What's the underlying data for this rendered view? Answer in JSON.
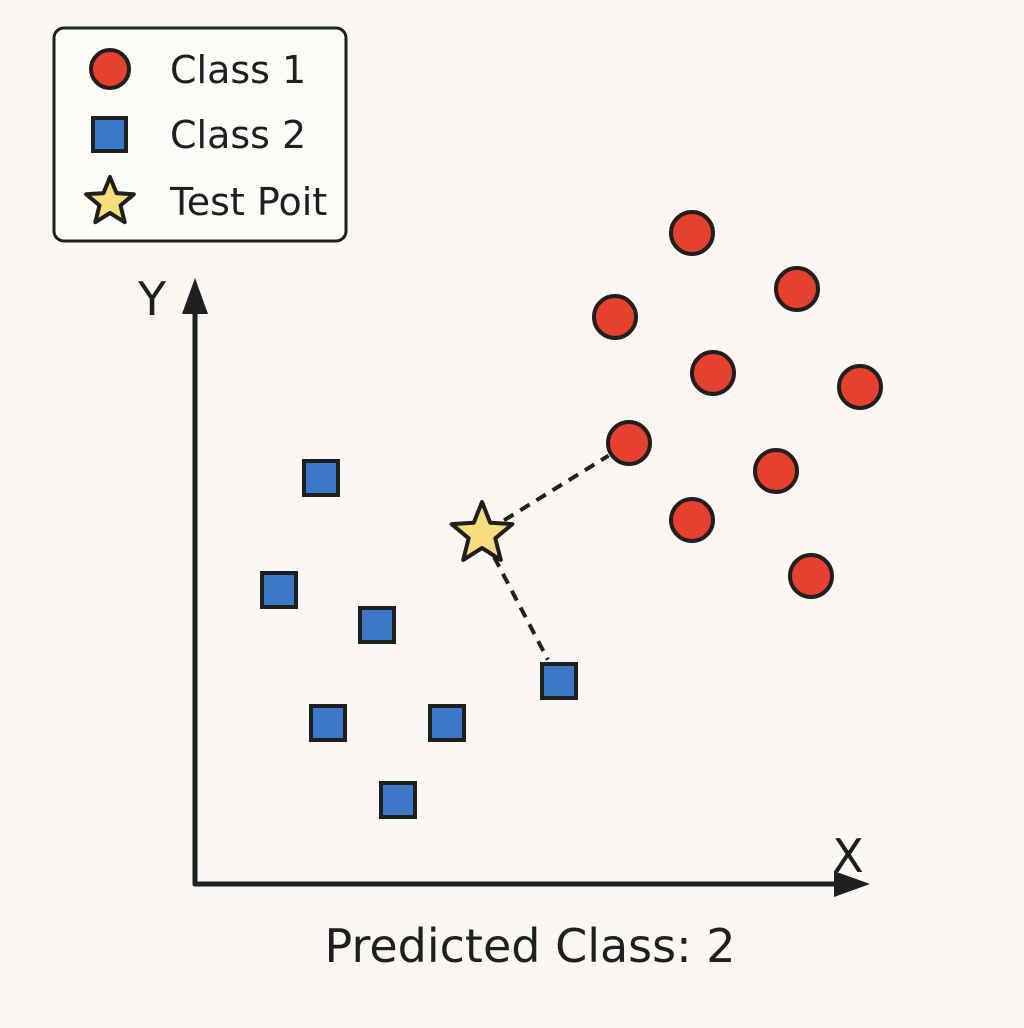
{
  "chart_data": {
    "type": "scatter",
    "title": "",
    "xlabel": "X",
    "ylabel": "Y",
    "xlim": [
      0,
      10
    ],
    "ylim": [
      0,
      10
    ],
    "grid": false,
    "legend_position": "top-left",
    "series": [
      {
        "name": "Class 1",
        "marker": "circle",
        "color": "#e8402f",
        "points": [
          [
            7.1,
            9.3
          ],
          [
            8.6,
            8.5
          ],
          [
            6.0,
            8.1
          ],
          [
            7.4,
            7.3
          ],
          [
            9.5,
            7.1
          ],
          [
            6.2,
            6.3
          ],
          [
            8.3,
            5.9
          ],
          [
            7.1,
            5.2
          ],
          [
            8.8,
            4.4
          ]
        ]
      },
      {
        "name": "Class 2",
        "marker": "square",
        "color": "#3b78c9",
        "points": [
          [
            1.8,
            5.8
          ],
          [
            1.2,
            4.2
          ],
          [
            2.6,
            3.7
          ],
          [
            1.9,
            2.3
          ],
          [
            3.6,
            2.3
          ],
          [
            2.9,
            1.2
          ],
          [
            5.2,
            2.9
          ]
        ]
      },
      {
        "name": "Test Poit",
        "marker": "star",
        "color": "#f6dd7d",
        "points": [
          [
            4.1,
            5.0
          ]
        ]
      }
    ],
    "neighbor_links": [
      {
        "from": [
          4.1,
          5.0
        ],
        "to": [
          6.2,
          6.3
        ]
      },
      {
        "from": [
          4.1,
          5.0
        ],
        "to": [
          5.2,
          2.9
        ]
      }
    ],
    "annotation": "Predicted Class: 2"
  }
}
